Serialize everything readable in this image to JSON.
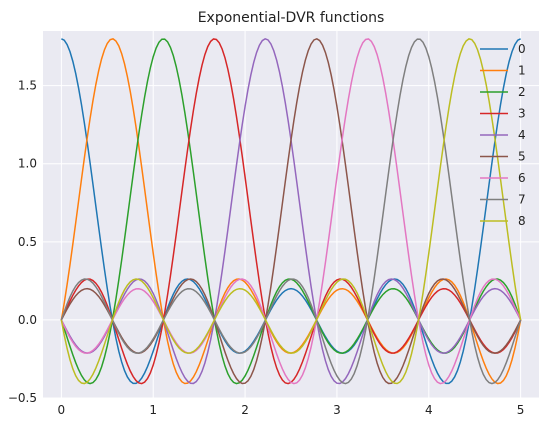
{
  "chart_data": {
    "type": "line",
    "title": "Exponential-DVR functions",
    "xlabel": "",
    "ylabel": "",
    "xlim": [
      -0.2,
      5.2
    ],
    "ylim": [
      -0.5,
      1.85
    ],
    "x_ticks": [
      "0",
      "1",
      "2",
      "3",
      "4",
      "5"
    ],
    "y_ticks": [
      "−0.5",
      "0.0",
      "0.5",
      "1.0",
      "1.5"
    ],
    "grid": true,
    "legend_position": "top-right",
    "series": [
      {
        "name": "0",
        "color": "#1f77b4",
        "peak_x": 0.0
      },
      {
        "name": "1",
        "color": "#ff7f0e",
        "peak_x": 0.5556
      },
      {
        "name": "2",
        "color": "#2ca02c",
        "peak_x": 1.1111
      },
      {
        "name": "3",
        "color": "#d62728",
        "peak_x": 1.6667
      },
      {
        "name": "4",
        "color": "#9467bd",
        "peak_x": 2.2222
      },
      {
        "name": "5",
        "color": "#8c564b",
        "peak_x": 2.7778
      },
      {
        "name": "6",
        "color": "#e377c2",
        "peak_x": 3.3333
      },
      {
        "name": "7",
        "color": "#7f7f7f",
        "peak_x": 3.8889
      },
      {
        "name": "8",
        "color": "#bcbd22",
        "peak_x": 4.4444
      }
    ],
    "peak_value": 1.8,
    "period": 5.0,
    "basis_size": 9
  }
}
